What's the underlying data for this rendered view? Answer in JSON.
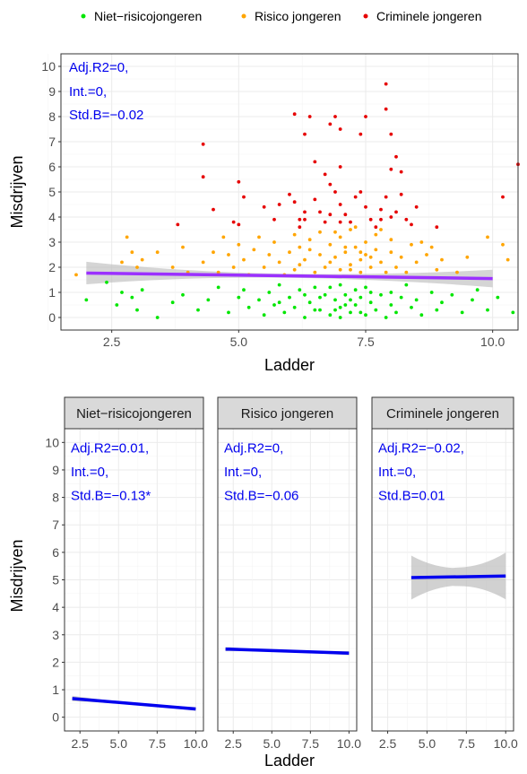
{
  "colors": {
    "non_risk": "#00e600",
    "risk": "#ffa500",
    "criminal": "#e60000",
    "fit_top": "#9b30ff",
    "fit_facet": "#0000ee",
    "annotation": "#0000ee",
    "ci_band": "#b3b3b3",
    "strip_bg": "#d9d9d9"
  },
  "legend": {
    "items": [
      {
        "label": "Niet−risicojongeren",
        "color_key": "non_risk"
      },
      {
        "label": "Risico jongeren",
        "color_key": "risk"
      },
      {
        "label": "Criminele jongeren",
        "color_key": "criminal"
      }
    ]
  },
  "chart_data": [
    {
      "type": "scatter",
      "xlabel": "Ladder",
      "ylabel": "Misdrijven",
      "xlim": [
        1.5,
        10.5
      ],
      "ylim": [
        -0.5,
        10.5
      ],
      "x_ticks": [
        "2.5",
        "5.0",
        "7.5",
        "10.0"
      ],
      "x_tick_values": [
        2.5,
        5.0,
        7.5,
        10.0
      ],
      "y_ticks": [
        "0",
        "1",
        "2",
        "3",
        "4",
        "5",
        "6",
        "7",
        "8",
        "9",
        "10"
      ],
      "grid": true,
      "annotation": [
        "Adj.R2=0,",
        "Int.=0,",
        "Std.B=−0.02"
      ],
      "fit_line": {
        "x": [
          2.0,
          10.0
        ],
        "y": [
          1.77,
          1.55
        ],
        "ci_half_start": 0.45,
        "ci_half_end": 0.35
      },
      "series": [
        {
          "name": "Criminele jongeren",
          "color_key": "criminal",
          "points": [
            [
              4.3,
              6.9
            ],
            [
              4.3,
              5.6
            ],
            [
              4.5,
              4.3
            ],
            [
              3.8,
              3.7
            ],
            [
              5.0,
              5.4
            ],
            [
              5.1,
              4.8
            ],
            [
              5.0,
              3.7
            ],
            [
              4.9,
              3.8
            ],
            [
              6.1,
              8.1
            ],
            [
              6.3,
              7.3
            ],
            [
              6.4,
              8.0
            ],
            [
              6.8,
              7.7
            ],
            [
              7.0,
              7.5
            ],
            [
              6.9,
              8.0
            ],
            [
              7.5,
              8.0
            ],
            [
              7.4,
              7.3
            ],
            [
              7.9,
              9.3
            ],
            [
              7.9,
              8.3
            ],
            [
              8.0,
              7.3
            ],
            [
              8.1,
              6.4
            ],
            [
              8.0,
              5.9
            ],
            [
              6.5,
              6.2
            ],
            [
              6.7,
              5.7
            ],
            [
              7.0,
              6.0
            ],
            [
              8.2,
              5.8
            ],
            [
              8.2,
              4.9
            ],
            [
              8.1,
              4.2
            ],
            [
              8.3,
              3.9
            ],
            [
              5.5,
              4.4
            ],
            [
              5.7,
              3.9
            ],
            [
              5.8,
              4.5
            ],
            [
              6.0,
              4.9
            ],
            [
              6.1,
              4.6
            ],
            [
              6.2,
              3.6
            ],
            [
              6.3,
              3.9
            ],
            [
              6.3,
              4.2
            ],
            [
              6.5,
              4.7
            ],
            [
              6.6,
              4.2
            ],
            [
              6.7,
              3.8
            ],
            [
              6.8,
              5.3
            ],
            [
              6.9,
              5.0
            ],
            [
              7.0,
              4.5
            ],
            [
              7.1,
              4.1
            ],
            [
              7.2,
              3.8
            ],
            [
              7.3,
              4.8
            ],
            [
              7.4,
              5.0
            ],
            [
              7.5,
              4.4
            ],
            [
              7.6,
              3.9
            ],
            [
              7.7,
              3.6
            ],
            [
              7.8,
              4.3
            ],
            [
              7.9,
              4.8
            ],
            [
              8.0,
              4.0
            ],
            [
              8.4,
              3.7
            ],
            [
              8.5,
              4.4
            ],
            [
              8.9,
              3.6
            ],
            [
              7.8,
              3.9
            ],
            [
              7.0,
              3.8
            ],
            [
              6.2,
              3.9
            ],
            [
              10.2,
              4.8
            ],
            [
              10.5,
              6.1
            ],
            [
              6.8,
              4.1
            ]
          ]
        },
        {
          "name": "Risico jongeren",
          "color_key": "risk",
          "points": [
            [
              1.8,
              1.7
            ],
            [
              2.8,
              3.2
            ],
            [
              2.9,
              2.6
            ],
            [
              2.7,
              2.2
            ],
            [
              3.0,
              2.0
            ],
            [
              3.1,
              2.3
            ],
            [
              3.4,
              2.6
            ],
            [
              3.7,
              2.0
            ],
            [
              3.9,
              2.8
            ],
            [
              4.0,
              1.8
            ],
            [
              4.3,
              2.2
            ],
            [
              4.5,
              2.6
            ],
            [
              4.6,
              1.8
            ],
            [
              4.7,
              3.2
            ],
            [
              4.8,
              2.5
            ],
            [
              4.9,
              2.0
            ],
            [
              5.0,
              2.9
            ],
            [
              5.1,
              2.3
            ],
            [
              5.2,
              1.7
            ],
            [
              5.3,
              2.7
            ],
            [
              5.5,
              2.0
            ],
            [
              5.6,
              2.5
            ],
            [
              5.7,
              3.0
            ],
            [
              5.8,
              2.2
            ],
            [
              5.9,
              1.7
            ],
            [
              6.0,
              2.6
            ],
            [
              6.1,
              3.3
            ],
            [
              6.1,
              1.9
            ],
            [
              6.2,
              2.8
            ],
            [
              6.3,
              2.3
            ],
            [
              6.4,
              3.1
            ],
            [
              6.5,
              1.8
            ],
            [
              6.6,
              2.5
            ],
            [
              6.6,
              3.4
            ],
            [
              6.7,
              2.0
            ],
            [
              6.8,
              2.9
            ],
            [
              6.9,
              2.4
            ],
            [
              7.0,
              3.2
            ],
            [
              7.0,
              1.9
            ],
            [
              7.1,
              2.6
            ],
            [
              7.2,
              2.1
            ],
            [
              7.2,
              3.5
            ],
            [
              7.3,
              2.8
            ],
            [
              7.4,
              2.3
            ],
            [
              7.4,
              1.8
            ],
            [
              7.5,
              3.0
            ],
            [
              7.5,
              2.5
            ],
            [
              7.6,
              2.0
            ],
            [
              7.7,
              3.3
            ],
            [
              7.7,
              2.7
            ],
            [
              7.8,
              2.2
            ],
            [
              7.9,
              1.8
            ],
            [
              8.0,
              2.6
            ],
            [
              8.0,
              3.1
            ],
            [
              8.1,
              2.0
            ],
            [
              8.2,
              2.4
            ],
            [
              8.3,
              1.8
            ],
            [
              8.4,
              2.9
            ],
            [
              8.5,
              2.2
            ],
            [
              8.6,
              3.0
            ],
            [
              8.7,
              2.5
            ],
            [
              8.9,
              1.9
            ],
            [
              9.0,
              2.3
            ],
            [
              9.3,
              1.8
            ],
            [
              9.5,
              2.4
            ],
            [
              9.9,
              3.2
            ],
            [
              10.3,
              2.3
            ],
            [
              10.2,
              2.9
            ],
            [
              6.9,
              3.4
            ],
            [
              7.1,
              2.8
            ],
            [
              7.3,
              3.6
            ],
            [
              6.4,
              2.7
            ],
            [
              5.4,
              3.2
            ],
            [
              8.8,
              2.8
            ],
            [
              7.8,
              3.5
            ],
            [
              6.2,
              2.1
            ],
            [
              7.6,
              2.4
            ],
            [
              7.2,
              1.9
            ],
            [
              6.8,
              2.2
            ],
            [
              7.4,
              2.6
            ]
          ]
        },
        {
          "name": "Niet−risicojongeren",
          "color_key": "non_risk",
          "points": [
            [
              2.0,
              0.7
            ],
            [
              2.4,
              1.4
            ],
            [
              2.6,
              0.5
            ],
            [
              2.7,
              1.0
            ],
            [
              2.9,
              0.8
            ],
            [
              3.0,
              0.3
            ],
            [
              3.1,
              1.1
            ],
            [
              3.4,
              0.0
            ],
            [
              3.7,
              0.6
            ],
            [
              3.9,
              0.9
            ],
            [
              4.2,
              0.3
            ],
            [
              4.4,
              0.7
            ],
            [
              4.6,
              1.2
            ],
            [
              4.8,
              0.2
            ],
            [
              5.0,
              0.8
            ],
            [
              5.1,
              1.1
            ],
            [
              5.2,
              0.4
            ],
            [
              5.4,
              0.7
            ],
            [
              5.5,
              0.1
            ],
            [
              5.6,
              1.0
            ],
            [
              5.7,
              0.5
            ],
            [
              5.8,
              1.3
            ],
            [
              5.9,
              0.2
            ],
            [
              6.0,
              0.8
            ],
            [
              6.1,
              0.4
            ],
            [
              6.2,
              1.1
            ],
            [
              6.3,
              0.0
            ],
            [
              6.4,
              0.6
            ],
            [
              6.5,
              1.2
            ],
            [
              6.6,
              0.3
            ],
            [
              6.7,
              0.9
            ],
            [
              6.8,
              0.1
            ],
            [
              6.9,
              0.7
            ],
            [
              7.0,
              1.3
            ],
            [
              7.0,
              0.4
            ],
            [
              7.1,
              0.9
            ],
            [
              7.2,
              0.2
            ],
            [
              7.3,
              1.1
            ],
            [
              7.3,
              0.5
            ],
            [
              7.4,
              0.8
            ],
            [
              7.5,
              0.1
            ],
            [
              7.5,
              1.2
            ],
            [
              7.6,
              0.6
            ],
            [
              7.7,
              0.3
            ],
            [
              7.8,
              0.9
            ],
            [
              7.9,
              0.0
            ],
            [
              8.0,
              1.0
            ],
            [
              8.0,
              0.5
            ],
            [
              8.1,
              0.2
            ],
            [
              8.2,
              0.8
            ],
            [
              8.3,
              1.3
            ],
            [
              8.4,
              0.4
            ],
            [
              8.5,
              0.7
            ],
            [
              8.6,
              0.1
            ],
            [
              8.8,
              1.0
            ],
            [
              8.9,
              0.3
            ],
            [
              9.0,
              0.6
            ],
            [
              9.2,
              0.9
            ],
            [
              9.4,
              0.2
            ],
            [
              9.6,
              0.7
            ],
            [
              9.7,
              1.1
            ],
            [
              9.9,
              0.3
            ],
            [
              10.1,
              0.8
            ],
            [
              10.4,
              0.2
            ],
            [
              6.6,
              0.8
            ],
            [
              7.2,
              0.7
            ],
            [
              6.9,
              0.3
            ],
            [
              7.4,
              0.2
            ],
            [
              6.3,
              0.9
            ],
            [
              7.0,
              0.0
            ],
            [
              6.8,
              1.2
            ],
            [
              7.6,
              1.0
            ],
            [
              5.8,
              0.6
            ],
            [
              7.1,
              0.5
            ],
            [
              6.5,
              0.3
            ]
          ]
        }
      ]
    },
    {
      "type": "line",
      "facet": "Niet−risicojongeren",
      "xlabel": "Ladder",
      "ylabel": "Misdrijven",
      "xlim": [
        1.5,
        10.5
      ],
      "ylim": [
        -0.5,
        10.5
      ],
      "x_ticks": [
        "2.5",
        "5.0",
        "7.5",
        "10.0"
      ],
      "annotation": [
        "Adj.R2=0.01,",
        "Int.=0,",
        "Std.B=−0.13*"
      ],
      "fit_line": {
        "x": [
          2.0,
          10.0
        ],
        "y": [
          0.68,
          0.3
        ],
        "ci_half_start": 0.1,
        "ci_half_end": 0.07
      }
    },
    {
      "type": "line",
      "facet": "Risico jongeren",
      "annotation": [
        "Adj.R2=0,",
        "Int.=0,",
        "Std.B=−0.06"
      ],
      "x_ticks": [
        "2.5",
        "5.0",
        "7.5",
        "10.0"
      ],
      "fit_line": {
        "x": [
          2.0,
          10.0
        ],
        "y": [
          2.48,
          2.33
        ],
        "ci_half_start": 0.08,
        "ci_half_end": 0.08
      }
    },
    {
      "type": "line",
      "facet": "Criminele jongeren",
      "annotation": [
        "Adj.R2=−0.02,",
        "Int.=0,",
        "Std.B=0.01"
      ],
      "x_ticks": [
        "2.5",
        "5.0",
        "7.5",
        "10.0"
      ],
      "fit_line": {
        "x": [
          4.0,
          10.0
        ],
        "y": [
          5.08,
          5.14
        ],
        "ci_half_start": 0.8,
        "ci_half_end": 0.85
      }
    }
  ]
}
